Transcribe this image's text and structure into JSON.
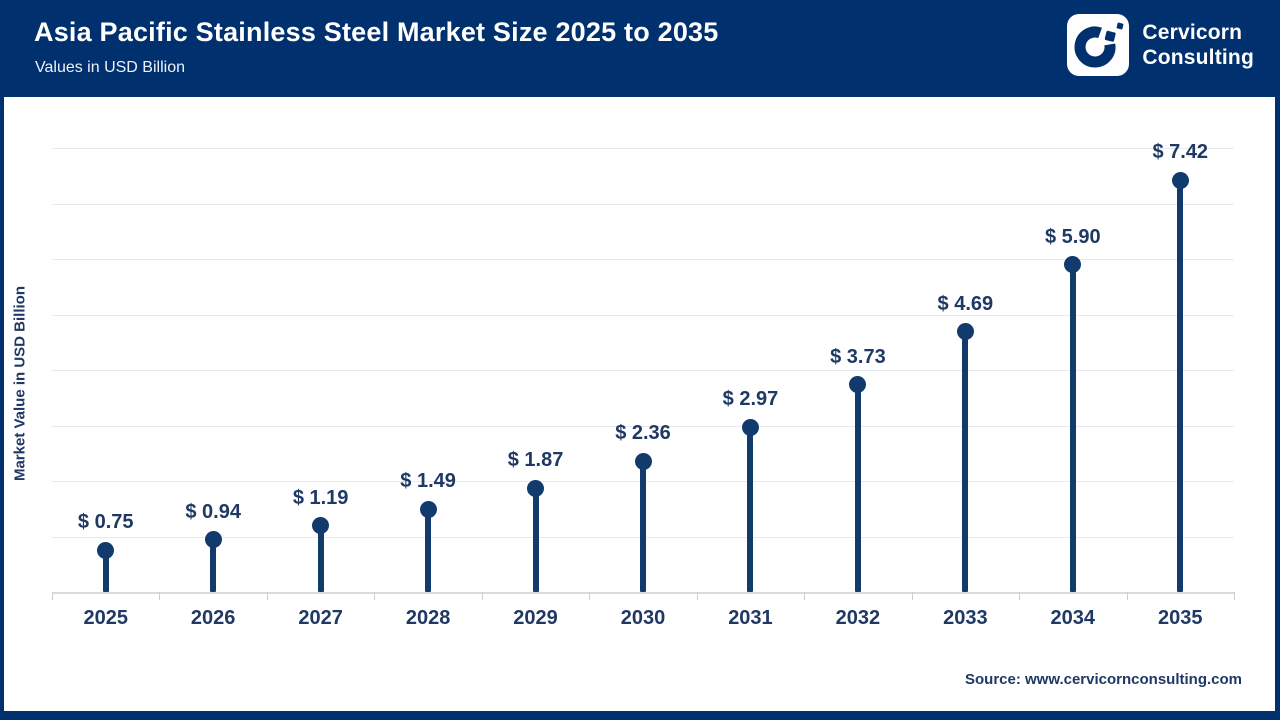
{
  "header": {
    "title": "Asia Pacific Stainless Steel Market Size 2025 to 2035",
    "subtitle": "Values in USD Billion",
    "logo": {
      "line1": "Cervicorn",
      "line2": "Consulting"
    }
  },
  "chart_data": {
    "type": "lollipop",
    "title": "Asia Pacific Stainless Steel Market Size 2025 to 2035",
    "subtitle": "Values in USD Billion",
    "categories": [
      "2025",
      "2026",
      "2027",
      "2028",
      "2029",
      "2030",
      "2031",
      "2032",
      "2033",
      "2034",
      "2035"
    ],
    "values": [
      0.75,
      0.94,
      1.19,
      1.49,
      1.87,
      2.36,
      2.97,
      3.73,
      4.69,
      5.9,
      7.42
    ],
    "value_labels": [
      "$ 0.75",
      "$ 0.94",
      "$ 1.19",
      "$ 1.49",
      "$ 1.87",
      "$ 2.36",
      "$ 2.97",
      "$ 3.73",
      "$ 4.69",
      "$ 5.90",
      "$ 7.42"
    ],
    "xlabel": "",
    "ylabel": "Market Value in USD Billion",
    "ylim": [
      0,
      8
    ],
    "grid": true,
    "grid_step": 1,
    "legend": "none"
  },
  "footer": {
    "source": "Source: www.cervicornconsulting.com"
  },
  "colors": {
    "header_bg": "#00306e",
    "accent_navy": "#123a6d",
    "label_navy": "#1f3864",
    "gridline": "#e6e9ed",
    "axis": "#d7dbe0",
    "tick": "#c9ced5",
    "white": "#ffffff"
  }
}
